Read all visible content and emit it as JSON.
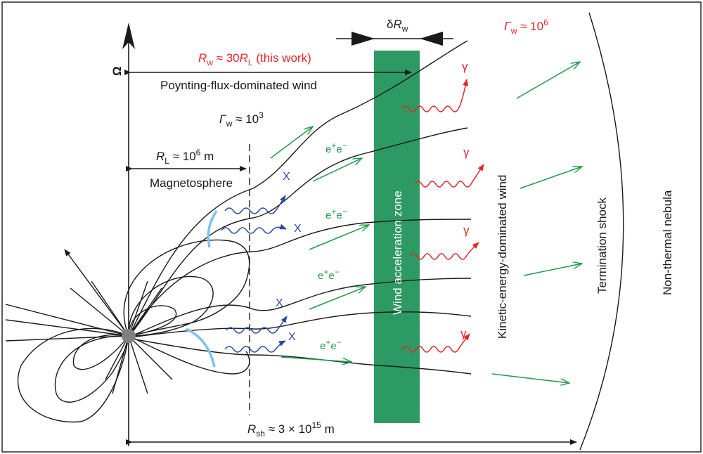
{
  "labels": {
    "omega": "Ω",
    "delta_rw": {
      "prefix": "δ",
      "R": "R",
      "sub": "w"
    },
    "gamma_w_far": {
      "G": "Γ",
      "sub": "w",
      "rest": " ≈ 10",
      "sup": "6"
    },
    "rw_this_work": {
      "R": "R",
      "sub": "w",
      "mid": " ≈ 30",
      "R2": "R",
      "sub2": "L",
      "rest": " (this work)"
    },
    "poynting": "Poynting-flux-dominated wind",
    "gamma_w_near": {
      "G": "Γ",
      "sub": "w",
      "rest": " ≈ 10",
      "sup": "3"
    },
    "rl": {
      "R": "R",
      "sub": "L",
      "rest": " ≈ 10",
      "sup": "6",
      "unit": " m"
    },
    "magnetosphere": "Magnetosphere",
    "wind_zone": "Wind acceleration zone",
    "kinetic": "Kinetic-energy-dominated wind",
    "termination": "Termination shock",
    "nebula": "Non-thermal nebula",
    "rsh": {
      "R": "R",
      "sub": "sh",
      "rest": " ≈ 3 × 10",
      "sup": "15",
      "unit": " m"
    },
    "xray": "X",
    "gamma": "γ",
    "pair": {
      "e1": "e",
      "plus": "+",
      "e2": "e",
      "minus": "−"
    }
  },
  "colors": {
    "green_zone": "#2e9a63",
    "arrow_green": "#1f9a4a",
    "red": "#e4252a",
    "blue": "#2a4aa8",
    "light_blue": "#7cc3ea",
    "star": "#808080"
  }
}
